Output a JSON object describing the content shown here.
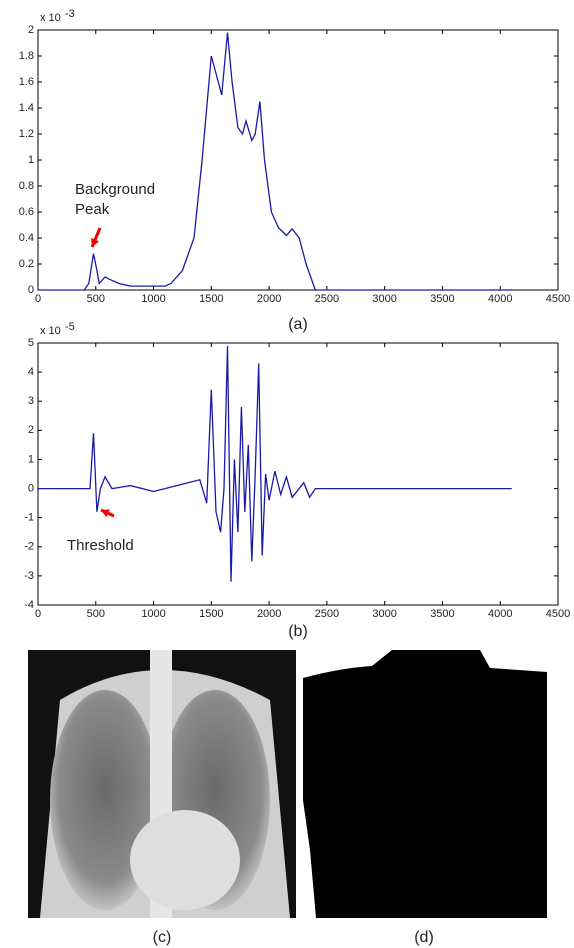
{
  "chart_data": [
    {
      "type": "line",
      "caption": "(a)",
      "y_scale_base": "x 10",
      "y_scale_exponent": "-3",
      "annotation": [
        "Background",
        "Peak"
      ],
      "x": [
        0,
        400,
        440,
        480,
        510,
        530,
        580,
        650,
        700,
        800,
        1100,
        1150,
        1250,
        1350,
        1420,
        1500,
        1560,
        1590,
        1640,
        1680,
        1730,
        1770,
        1800,
        1850,
        1880,
        1920,
        1960,
        2020,
        2080,
        2150,
        2200,
        2260,
        2320,
        2400,
        4100
      ],
      "series": [
        {
          "color": "#1a1aa6",
          "values": [
            0,
            0,
            0.05,
            0.28,
            0.15,
            0.05,
            0.1,
            0.07,
            0.05,
            0.03,
            0.03,
            0.05,
            0.15,
            0.4,
            1.0,
            1.8,
            1.6,
            1.5,
            1.98,
            1.6,
            1.25,
            1.2,
            1.3,
            1.15,
            1.2,
            1.45,
            1.0,
            0.6,
            0.48,
            0.42,
            0.47,
            0.4,
            0.2,
            0,
            0
          ]
        }
      ],
      "xlim": [
        0,
        4500
      ],
      "xticks": [
        0,
        500,
        1000,
        1500,
        2000,
        2500,
        3000,
        3500,
        4000,
        4500
      ],
      "ylim": [
        0,
        2
      ],
      "yticks": [
        0,
        0.2,
        0.4,
        0.6,
        0.8,
        1,
        1.2,
        1.4,
        1.6,
        1.8,
        2
      ]
    },
    {
      "type": "line",
      "caption": "(b)",
      "y_scale_base": "x 10",
      "y_scale_exponent": "-5",
      "annotation": [
        "Threshold"
      ],
      "x": [
        0,
        450,
        480,
        510,
        540,
        580,
        640,
        800,
        1000,
        1200,
        1400,
        1460,
        1500,
        1540,
        1580,
        1610,
        1640,
        1670,
        1700,
        1730,
        1760,
        1790,
        1820,
        1850,
        1880,
        1910,
        1940,
        1970,
        2000,
        2050,
        2100,
        2150,
        2200,
        2300,
        2350,
        2400,
        4100
      ],
      "series": [
        {
          "color": "#1a1aa6",
          "values": [
            0,
            0,
            1.9,
            -0.8,
            0,
            0.4,
            0,
            0.1,
            -0.1,
            0.1,
            0.3,
            -0.5,
            3.4,
            -0.8,
            -1.5,
            0,
            4.9,
            -3.2,
            1.0,
            -1.5,
            2.8,
            -0.8,
            1.5,
            -2.5,
            0.5,
            4.3,
            -2.3,
            0.5,
            -0.4,
            0.6,
            -0.2,
            0.4,
            -0.3,
            0.2,
            -0.3,
            0,
            0
          ]
        }
      ],
      "xlim": [
        0,
        4500
      ],
      "xticks": [
        0,
        500,
        1000,
        1500,
        2000,
        2500,
        3000,
        3500,
        4000,
        4500
      ],
      "ylim": [
        -4,
        5
      ],
      "yticks": [
        -4,
        -3,
        -2,
        -1,
        0,
        1,
        2,
        3,
        4,
        5
      ]
    }
  ],
  "images": [
    {
      "caption": "(c)"
    },
    {
      "caption": "(d)"
    }
  ]
}
